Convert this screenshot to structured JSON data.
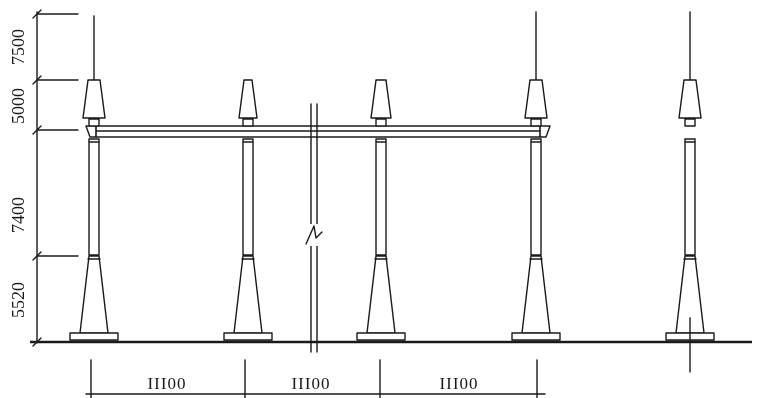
{
  "diagram": {
    "vertical_dimensions": [
      "7500",
      "5000",
      "7400",
      "5520"
    ],
    "horizontal_spans": [
      "III00",
      "III00",
      "III00"
    ],
    "break_mark": "⌇",
    "colors": {
      "ink": "#1a1a1a",
      "paper": "#ffffff"
    }
  }
}
